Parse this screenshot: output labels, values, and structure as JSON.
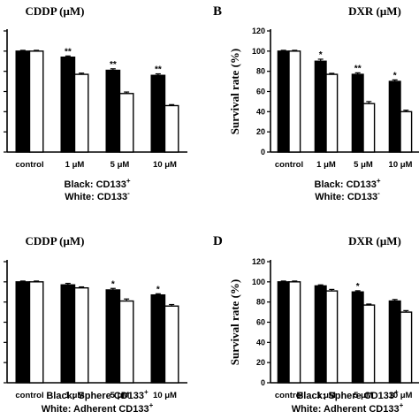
{
  "chart_data": [
    {
      "type": "bar",
      "panel_letter": "",
      "title": "CDDP (μM)",
      "xlabel": "",
      "ylabel": "",
      "categories": [
        "control",
        "1 μM",
        "5 μM",
        "10 μM"
      ],
      "series": [
        {
          "name": "CD133⁺",
          "color": "#000000",
          "values": [
            100,
            94,
            81,
            76
          ],
          "errors": [
            0.8,
            1.2,
            1.5,
            1.5
          ]
        },
        {
          "name": "CD133⁻",
          "color": "#ffffff",
          "values": [
            100,
            77,
            58,
            46
          ],
          "errors": [
            0.8,
            1.2,
            1.5,
            1.0
          ]
        }
      ],
      "significance": [
        "",
        "**",
        "**",
        "**"
      ],
      "ylim": [
        0,
        120
      ],
      "legend": [
        {
          "prefix": "Black: ",
          "text": "CD133",
          "sup": "+"
        },
        {
          "prefix": "White: ",
          "text": "CD133",
          "sup": "-"
        }
      ]
    },
    {
      "type": "bar",
      "panel_letter": "B",
      "title": "DXR (μM)",
      "xlabel": "",
      "ylabel": "Survival rate (%)",
      "categories": [
        "control",
        "1 μM",
        "5 μM",
        "10 μM"
      ],
      "series": [
        {
          "name": "CD133⁺",
          "color": "#000000",
          "values": [
            100,
            90,
            77,
            70
          ],
          "errors": [
            0.8,
            2.0,
            1.5,
            1.5
          ]
        },
        {
          "name": "CD133⁻",
          "color": "#ffffff",
          "values": [
            100,
            77,
            48,
            40
          ],
          "errors": [
            0.8,
            1.0,
            2.0,
            1.5
          ]
        }
      ],
      "significance": [
        "",
        "*",
        "**",
        "*"
      ],
      "ylim": [
        0,
        120
      ],
      "yticks": [
        0,
        20,
        40,
        60,
        80,
        100,
        120
      ],
      "legend": [
        {
          "prefix": "Black: ",
          "text": "CD133",
          "sup": "+"
        },
        {
          "prefix": "White: ",
          "text": "CD133",
          "sup": "-"
        }
      ]
    },
    {
      "type": "bar",
      "panel_letter": "",
      "title": "CDDP (μM)",
      "xlabel": "",
      "ylabel": "",
      "categories": [
        "control",
        "1 μM",
        "5 μM",
        "10 μM"
      ],
      "series": [
        {
          "name": "Sphere CD133⁺",
          "color": "#000000",
          "values": [
            100,
            97,
            92,
            87
          ],
          "errors": [
            0.8,
            1.5,
            1.5,
            1.2
          ]
        },
        {
          "name": "Adherent CD133⁺",
          "color": "#ffffff",
          "values": [
            100,
            94,
            81,
            76
          ],
          "errors": [
            0.8,
            1.0,
            2.0,
            1.5
          ]
        }
      ],
      "significance": [
        "",
        "",
        "*",
        "*"
      ],
      "ylim": [
        0,
        120
      ],
      "legend": [
        {
          "prefix": "Black: ",
          "text": "Sphere CD133",
          "sup": "+"
        },
        {
          "prefix": "White: ",
          "text": "Adherent CD133",
          "sup": "+"
        }
      ]
    },
    {
      "type": "bar",
      "panel_letter": "D",
      "title": "DXR (μM)",
      "xlabel": "",
      "ylabel": "Survival rate (%)",
      "categories": [
        "control",
        "1 μM",
        "5 μM",
        "10 μM"
      ],
      "series": [
        {
          "name": "Sphere CD133⁺",
          "color": "#000000",
          "values": [
            100,
            96,
            90,
            81
          ],
          "errors": [
            0.8,
            1.0,
            1.2,
            1.5
          ]
        },
        {
          "name": "Adherent CD133⁺",
          "color": "#ffffff",
          "values": [
            100,
            91,
            77,
            70
          ],
          "errors": [
            0.8,
            1.5,
            1.0,
            1.5
          ]
        }
      ],
      "significance": [
        "",
        "",
        "*",
        ""
      ],
      "ylim": [
        0,
        120
      ],
      "yticks": [
        0,
        20,
        40,
        60,
        80,
        100,
        120
      ],
      "legend": [
        {
          "prefix": "Black: ",
          "text": "Sphere CD133",
          "sup": "+"
        },
        {
          "prefix": "White: ",
          "text": "Adherent CD133",
          "sup": "+"
        }
      ]
    }
  ]
}
